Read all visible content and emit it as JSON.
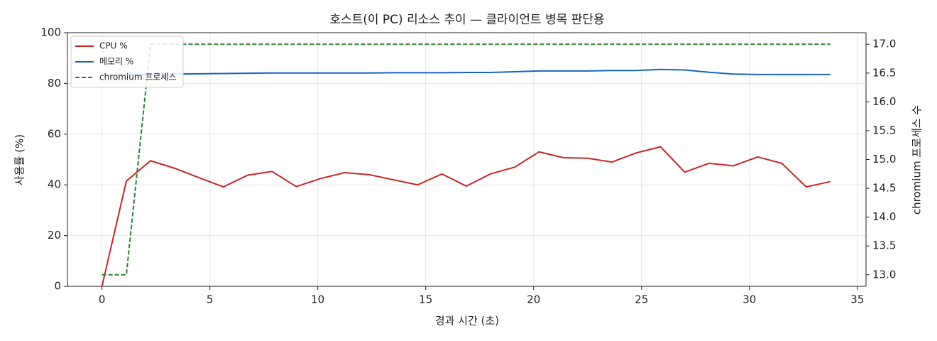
{
  "chart_data": {
    "type": "line",
    "title": "호스트(이 PC) 리소스 추이 — 클라이언트 병목 판단용",
    "x_label": "경과 시간 (초)",
    "y_label": "사용률 (%)",
    "y2_label": "chromium 프로세스 수",
    "x": [
      0,
      1.13,
      2.25,
      3.38,
      4.5,
      5.63,
      6.75,
      7.88,
      9.0,
      10.13,
      11.25,
      12.38,
      13.5,
      14.63,
      15.75,
      16.88,
      18.0,
      19.13,
      20.25,
      21.38,
      22.5,
      23.63,
      24.75,
      25.88,
      27.0,
      28.13,
      29.25,
      30.38,
      31.5,
      32.63,
      33.75
    ],
    "series": [
      {
        "name": "CPU %",
        "color": "#c62828",
        "style": "solid",
        "values": [
          0,
          41.5,
          49.5,
          46.5,
          42.8,
          39.2,
          43.8,
          45.3,
          39.3,
          42.5,
          44.8,
          44.0,
          42.0,
          40.0,
          44.3,
          39.5,
          44.3,
          47.0,
          53.0,
          50.7,
          50.5,
          49.0,
          52.6,
          55.0,
          45.0,
          48.5,
          47.5,
          51.0,
          48.5,
          39.2,
          41.3
        ]
      },
      {
        "name": "메모리 %",
        "color": "#1565c0",
        "style": "solid",
        "values": [
          83.3,
          83.4,
          83.5,
          83.7,
          83.8,
          83.9,
          84.0,
          84.1,
          84.1,
          84.1,
          84.1,
          84.1,
          84.2,
          84.2,
          84.2,
          84.3,
          84.3,
          84.6,
          84.9,
          84.9,
          84.9,
          85.1,
          85.1,
          85.5,
          85.3,
          84.4,
          83.7,
          83.5,
          83.5,
          83.5,
          83.5
        ]
      },
      {
        "name": "chromium 프로세스",
        "color": "#2e7d32",
        "style": "dashed",
        "axis": "y2",
        "values": [
          13,
          13,
          17,
          17,
          17,
          17,
          17,
          17,
          17,
          17,
          17,
          17,
          17,
          17,
          17,
          17,
          17,
          17,
          17,
          17,
          17,
          17,
          17,
          17,
          17,
          17,
          17,
          17,
          17,
          17,
          17
        ]
      }
    ],
    "xlim": [
      -1.6,
      35.4
    ],
    "xticks": [
      0,
      5,
      10,
      15,
      20,
      25,
      30,
      35
    ],
    "ylim": [
      0,
      100
    ],
    "yticks": [
      0,
      20,
      40,
      60,
      80,
      100
    ],
    "y2lim": [
      12.8,
      17.2
    ],
    "y2ticks": [
      {
        "value": 13,
        "label": "13.0"
      },
      13.5,
      {
        "value": 14,
        "label": "14.0"
      },
      14.5,
      {
        "value": 15,
        "label": "15.0"
      },
      15.5,
      {
        "value": 16,
        "label": "16.0"
      },
      16.5,
      {
        "value": 17,
        "label": "17.0"
      }
    ],
    "grid": true,
    "legend": "upper-left"
  }
}
